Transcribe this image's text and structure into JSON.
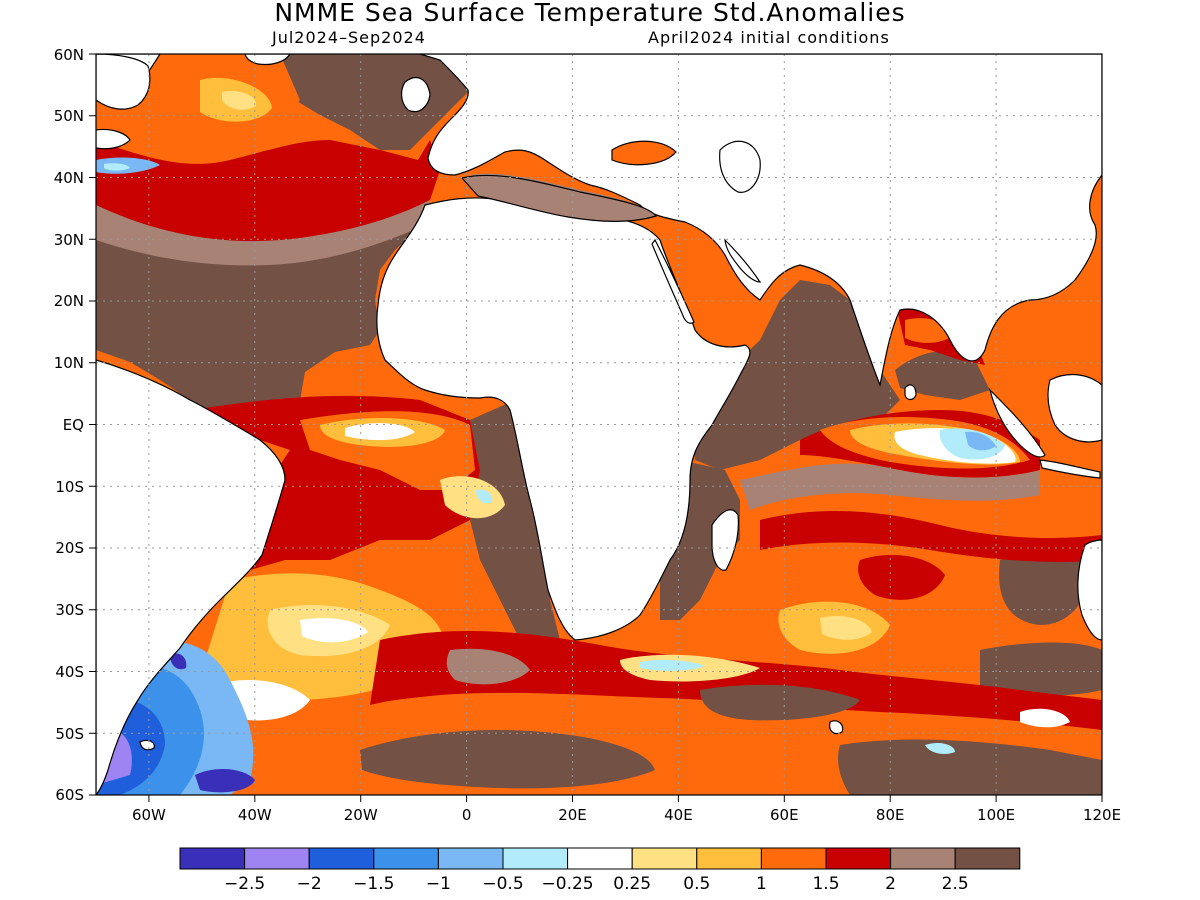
{
  "title": "NMME Sea Surface Temperature Std.Anomalies",
  "subtitle_left": "Jul2024–Sep2024",
  "subtitle_right": "April2024 initial conditions",
  "lat_ticks": [
    "60N",
    "50N",
    "40N",
    "30N",
    "20N",
    "10N",
    "EQ",
    "10S",
    "20S",
    "30S",
    "40S",
    "50S",
    "60S"
  ],
  "lon_ticks": [
    "60W",
    "40W",
    "20W",
    "0",
    "20E",
    "40E",
    "60E",
    "80E",
    "100E",
    "120E"
  ],
  "colorbar": {
    "colors": [
      "#3a2fb8",
      "#9d84f2",
      "#1f5fdc",
      "#3c91ea",
      "#79b8f4",
      "#b2ecfa",
      "#ffffff",
      "#ffe082",
      "#ffbe3c",
      "#ff6a0c",
      "#c80000",
      "#a98276",
      "#735145"
    ],
    "labels": [
      "−2.5",
      "−2",
      "−1.5",
      "−1",
      "−0.5",
      "−0.25",
      "0.25",
      "0.5",
      "1",
      "1.5",
      "2",
      "2.5"
    ]
  },
  "map_data": {
    "type": "filled-contour-map",
    "lon_range": [
      -70,
      120
    ],
    "lat_range": [
      -60,
      60
    ],
    "variable": "Sea Surface Temperature Std.Anomalies",
    "colors": {
      "ocean_base": "#ff6a0c",
      "land": "#ffffff",
      "coastline": "#000000",
      "grid": "#9a9a9a"
    }
  }
}
